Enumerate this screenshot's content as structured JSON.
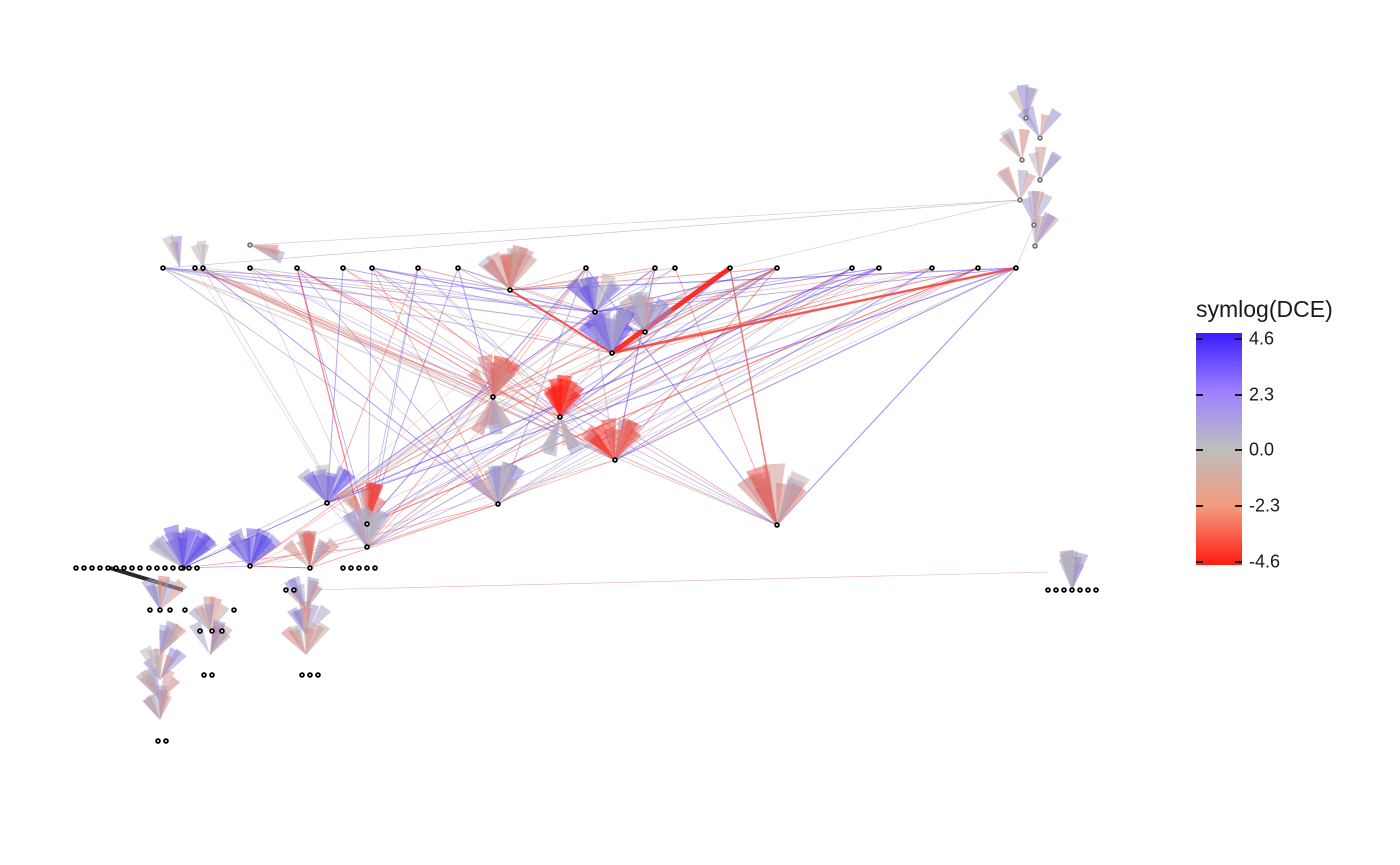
{
  "colors": {
    "high": "#3a1cff",
    "mid": "#bebebe",
    "low": "#ff1c10",
    "node": "#000000"
  },
  "legend": {
    "title": "symlog(DCE)",
    "labels": [
      "4.6",
      "2.3",
      "0.0",
      "-2.3",
      "-4.6"
    ]
  }
}
